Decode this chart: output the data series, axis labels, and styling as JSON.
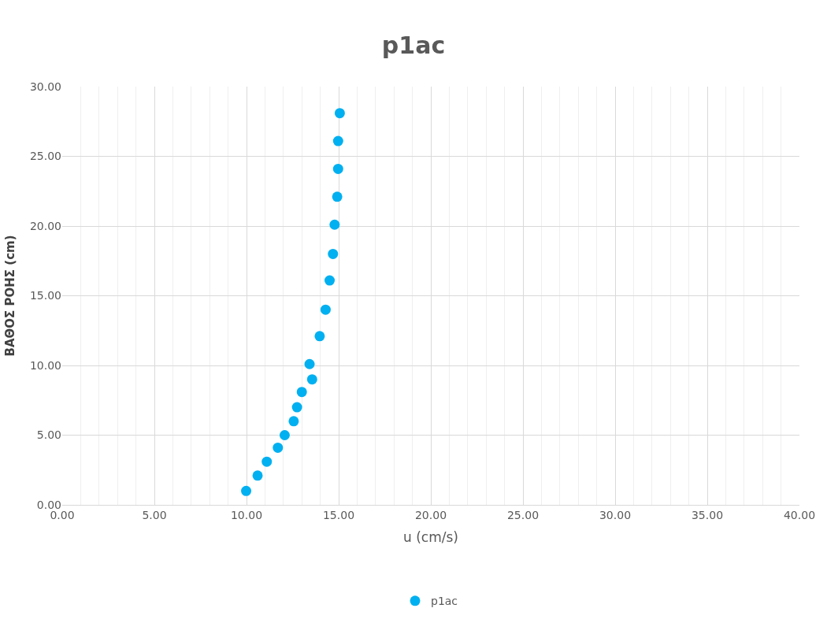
{
  "chart_data": {
    "type": "scatter",
    "title": "p1ac",
    "xlabel": "u (cm/s)",
    "ylabel": "ΒΑΘΟΣ ΡΟΗΣ (cm)",
    "series": [
      {
        "name": "p1ac",
        "color": "#00b0f0",
        "x": [
          9.98,
          10.6,
          11.1,
          11.7,
          12.07,
          12.56,
          12.74,
          13.0,
          13.56,
          13.42,
          13.97,
          14.29,
          14.51,
          14.69,
          14.78,
          14.92,
          14.97,
          14.97,
          15.06
        ],
        "values": [
          1.0,
          2.1,
          3.1,
          4.1,
          5.0,
          6.0,
          7.0,
          8.1,
          9.0,
          10.1,
          12.1,
          14.0,
          16.1,
          18.0,
          20.1,
          22.1,
          24.1,
          26.1,
          28.1
        ]
      }
    ],
    "xlim": [
      0,
      40
    ],
    "ylim": [
      0,
      30
    ],
    "xticks": [
      {
        "value": 0,
        "label": "0.00"
      },
      {
        "value": 5,
        "label": "5.00"
      },
      {
        "value": 10,
        "label": "10.00"
      },
      {
        "value": 15,
        "label": "15.00"
      },
      {
        "value": 20,
        "label": "20.00"
      },
      {
        "value": 25,
        "label": "25.00"
      },
      {
        "value": 30,
        "label": "30.00"
      },
      {
        "value": 35,
        "label": "35.00"
      },
      {
        "value": 40,
        "label": "40.00"
      }
    ],
    "yticks": [
      {
        "value": 0,
        "label": "0.00"
      },
      {
        "value": 5,
        "label": "5.00"
      },
      {
        "value": 10,
        "label": "10.00"
      },
      {
        "value": 15,
        "label": "15.00"
      },
      {
        "value": 20,
        "label": "20.00"
      },
      {
        "value": 25,
        "label": "25.00"
      },
      {
        "value": 30,
        "label": "30.00"
      }
    ],
    "grid": true,
    "legend": "bottom",
    "marker": "circle"
  }
}
